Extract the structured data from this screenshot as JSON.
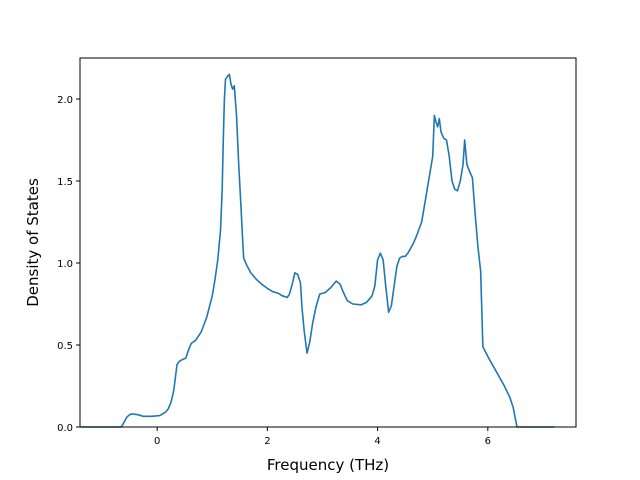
{
  "chart_data": {
    "type": "line",
    "title": "",
    "xlabel": "Frequency (THz)",
    "ylabel": "Density of States",
    "xlim": [
      -1.4,
      7.6
    ],
    "ylim": [
      0.0,
      2.25
    ],
    "xticks": [
      0,
      2,
      4,
      6
    ],
    "xtick_labels": [
      "0",
      "2",
      "4",
      "6"
    ],
    "yticks": [
      0.0,
      0.5,
      1.0,
      1.5,
      2.0
    ],
    "ytick_labels": [
      "0.0",
      "0.5",
      "1.0",
      "1.5",
      "2.0"
    ],
    "grid": false,
    "legend": "none",
    "series": [
      {
        "color": "#1f77b4",
        "points": [
          [
            -1.38,
            0.0
          ],
          [
            -0.65,
            0.0
          ],
          [
            -0.6,
            0.03
          ],
          [
            -0.55,
            0.06
          ],
          [
            -0.5,
            0.075
          ],
          [
            -0.45,
            0.08
          ],
          [
            -0.35,
            0.075
          ],
          [
            -0.25,
            0.065
          ],
          [
            -0.1,
            0.065
          ],
          [
            0.05,
            0.07
          ],
          [
            0.15,
            0.09
          ],
          [
            0.2,
            0.11
          ],
          [
            0.25,
            0.15
          ],
          [
            0.3,
            0.22
          ],
          [
            0.33,
            0.3
          ],
          [
            0.36,
            0.38
          ],
          [
            0.4,
            0.4
          ],
          [
            0.45,
            0.41
          ],
          [
            0.52,
            0.42
          ],
          [
            0.58,
            0.48
          ],
          [
            0.62,
            0.51
          ],
          [
            0.7,
            0.53
          ],
          [
            0.8,
            0.58
          ],
          [
            0.9,
            0.67
          ],
          [
            1.0,
            0.8
          ],
          [
            1.05,
            0.9
          ],
          [
            1.1,
            1.02
          ],
          [
            1.15,
            1.2
          ],
          [
            1.18,
            1.45
          ],
          [
            1.2,
            1.75
          ],
          [
            1.22,
            2.0
          ],
          [
            1.24,
            2.12
          ],
          [
            1.28,
            2.14
          ],
          [
            1.31,
            2.15
          ],
          [
            1.34,
            2.09
          ],
          [
            1.37,
            2.06
          ],
          [
            1.4,
            2.08
          ],
          [
            1.44,
            1.9
          ],
          [
            1.48,
            1.6
          ],
          [
            1.52,
            1.35
          ],
          [
            1.55,
            1.15
          ],
          [
            1.57,
            1.03
          ],
          [
            1.62,
            0.99
          ],
          [
            1.7,
            0.94
          ],
          [
            1.8,
            0.9
          ],
          [
            1.9,
            0.87
          ],
          [
            2.0,
            0.845
          ],
          [
            2.1,
            0.825
          ],
          [
            2.2,
            0.815
          ],
          [
            2.27,
            0.8
          ],
          [
            2.32,
            0.795
          ],
          [
            2.36,
            0.79
          ],
          [
            2.4,
            0.81
          ],
          [
            2.45,
            0.87
          ],
          [
            2.5,
            0.94
          ],
          [
            2.55,
            0.93
          ],
          [
            2.6,
            0.88
          ],
          [
            2.63,
            0.72
          ],
          [
            2.67,
            0.58
          ],
          [
            2.72,
            0.45
          ],
          [
            2.77,
            0.52
          ],
          [
            2.82,
            0.63
          ],
          [
            2.88,
            0.73
          ],
          [
            2.95,
            0.81
          ],
          [
            3.05,
            0.82
          ],
          [
            3.15,
            0.85
          ],
          [
            3.25,
            0.89
          ],
          [
            3.32,
            0.87
          ],
          [
            3.38,
            0.82
          ],
          [
            3.45,
            0.77
          ],
          [
            3.55,
            0.75
          ],
          [
            3.7,
            0.745
          ],
          [
            3.8,
            0.76
          ],
          [
            3.9,
            0.8
          ],
          [
            3.95,
            0.86
          ],
          [
            4.0,
            1.02
          ],
          [
            4.05,
            1.06
          ],
          [
            4.1,
            1.02
          ],
          [
            4.15,
            0.85
          ],
          [
            4.2,
            0.7
          ],
          [
            4.25,
            0.74
          ],
          [
            4.3,
            0.86
          ],
          [
            4.35,
            0.98
          ],
          [
            4.4,
            1.03
          ],
          [
            4.45,
            1.04
          ],
          [
            4.5,
            1.04
          ],
          [
            4.55,
            1.06
          ],
          [
            4.6,
            1.09
          ],
          [
            4.65,
            1.12
          ],
          [
            4.7,
            1.16
          ],
          [
            4.8,
            1.25
          ],
          [
            4.85,
            1.35
          ],
          [
            4.9,
            1.45
          ],
          [
            4.95,
            1.55
          ],
          [
            5.0,
            1.65
          ],
          [
            5.03,
            1.9
          ],
          [
            5.06,
            1.86
          ],
          [
            5.09,
            1.83
          ],
          [
            5.12,
            1.88
          ],
          [
            5.15,
            1.8
          ],
          [
            5.2,
            1.76
          ],
          [
            5.25,
            1.75
          ],
          [
            5.3,
            1.65
          ],
          [
            5.35,
            1.5
          ],
          [
            5.4,
            1.45
          ],
          [
            5.45,
            1.44
          ],
          [
            5.5,
            1.5
          ],
          [
            5.55,
            1.6
          ],
          [
            5.58,
            1.75
          ],
          [
            5.62,
            1.6
          ],
          [
            5.68,
            1.55
          ],
          [
            5.72,
            1.52
          ],
          [
            5.77,
            1.3
          ],
          [
            5.82,
            1.1
          ],
          [
            5.87,
            0.95
          ],
          [
            5.91,
            0.49
          ],
          [
            6.0,
            0.43
          ],
          [
            6.1,
            0.37
          ],
          [
            6.2,
            0.31
          ],
          [
            6.3,
            0.25
          ],
          [
            6.4,
            0.18
          ],
          [
            6.46,
            0.12
          ],
          [
            6.5,
            0.05
          ],
          [
            6.53,
            0.0
          ],
          [
            7.2,
            0.0
          ]
        ]
      }
    ]
  }
}
